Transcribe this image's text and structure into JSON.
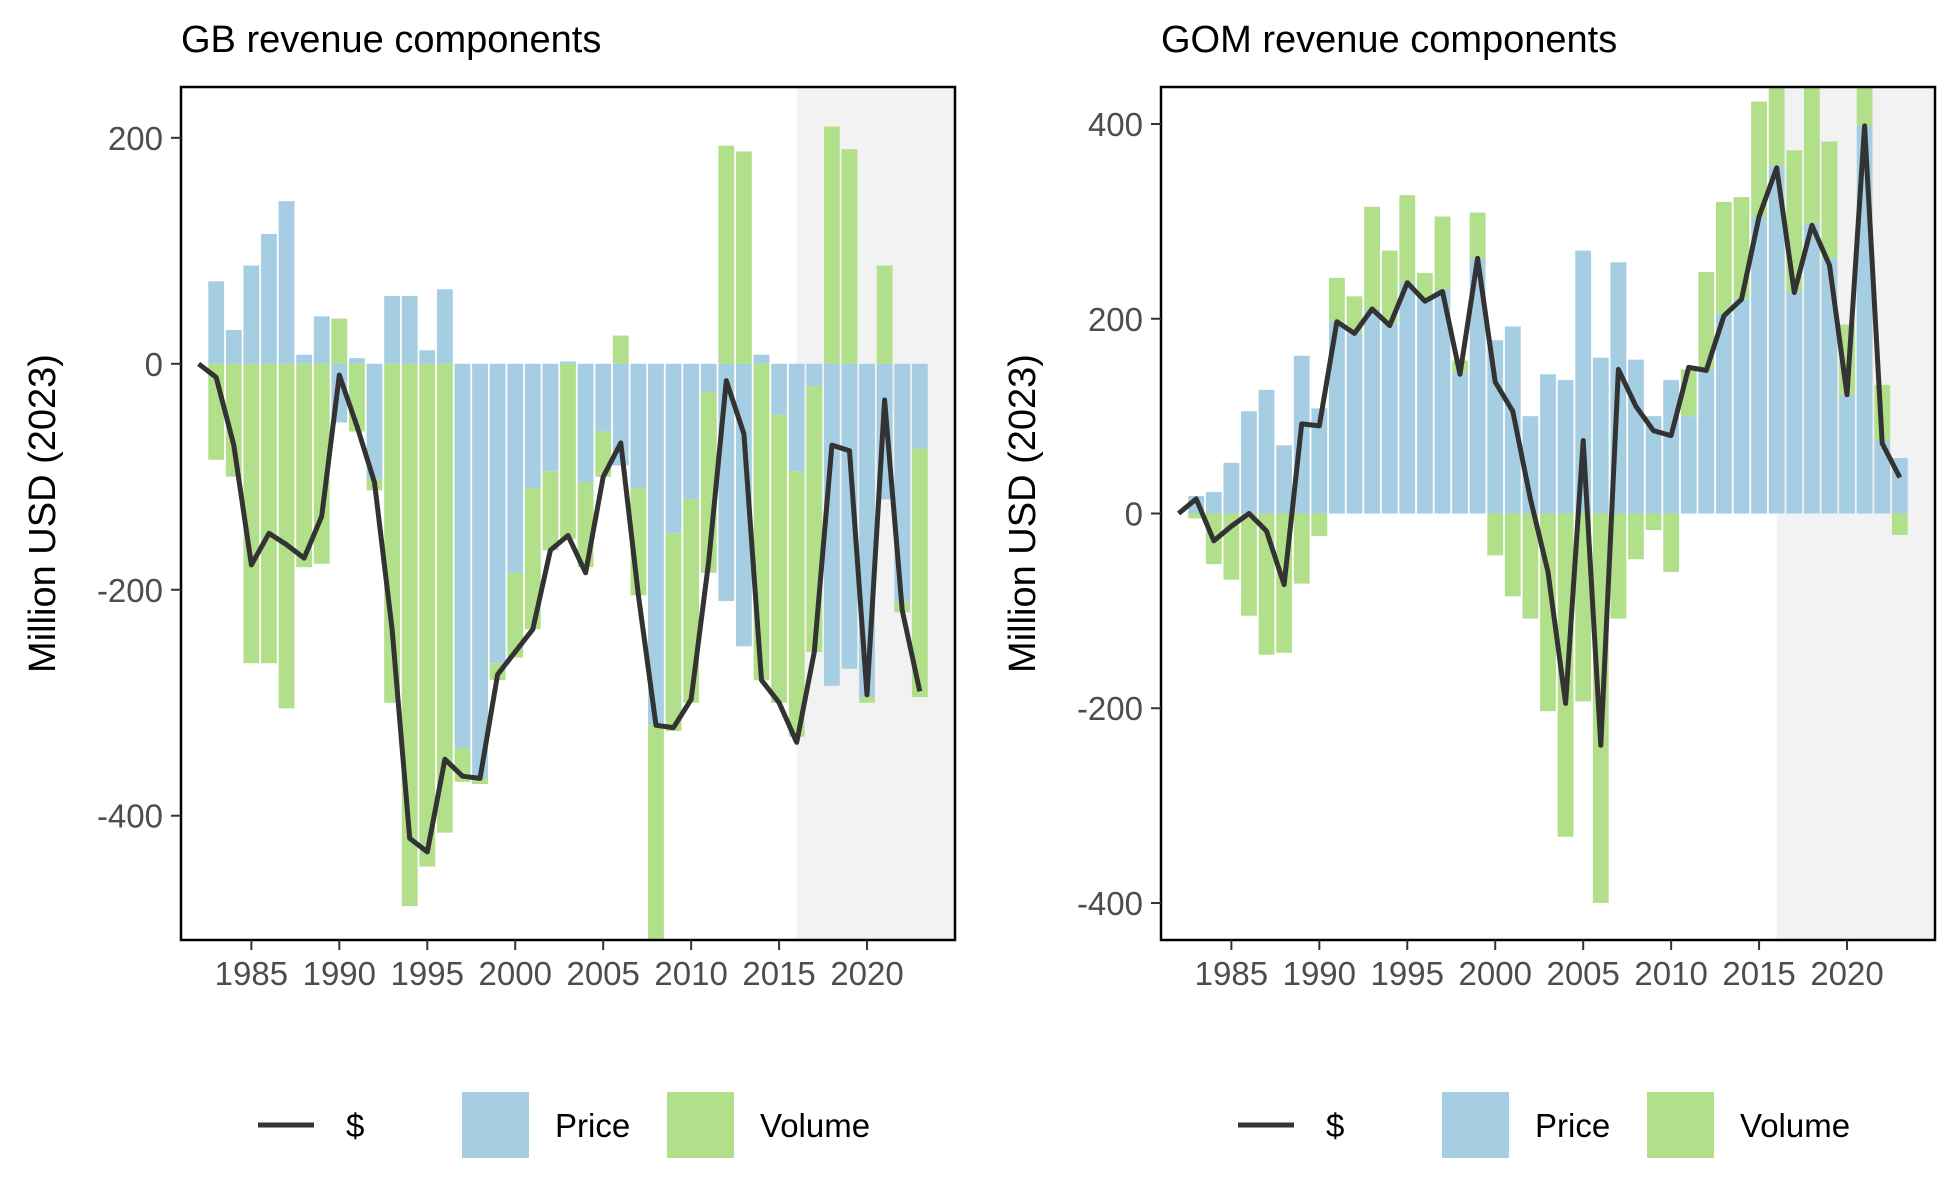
{
  "colors": {
    "price": "#a6cee3",
    "volume": "#b2df8a",
    "line": "#333333",
    "shade": "#f2f2f2"
  },
  "legend": {
    "line_label": "$",
    "price_label": "Price",
    "volume_label": "Volume"
  },
  "chart_data": [
    {
      "type": "bar",
      "title": "GB revenue components",
      "ylabel": "Million USD (2023)",
      "xlim": [
        1981,
        2025
      ],
      "ylim": [
        -510,
        245
      ],
      "xticks": [
        1985,
        1990,
        1995,
        2000,
        2005,
        2010,
        2015,
        2020
      ],
      "yticks": [
        -400,
        -200,
        0,
        200
      ],
      "shade_from": 2016,
      "x": [
        1983,
        1984,
        1985,
        1986,
        1987,
        1988,
        1989,
        1990,
        1991,
        1992,
        1993,
        1994,
        1995,
        1996,
        1997,
        1998,
        1999,
        2000,
        2001,
        2002,
        2003,
        2004,
        2005,
        2006,
        2007,
        2008,
        2009,
        2010,
        2011,
        2012,
        2013,
        2014,
        2015,
        2016,
        2017,
        2018,
        2019,
        2020,
        2021,
        2022,
        2023
      ],
      "series": [
        {
          "name": "Price",
          "values": [
            73,
            30,
            87,
            115,
            144,
            8,
            42,
            -52,
            5,
            -102,
            60,
            60,
            12,
            66,
            -340,
            -367,
            -265,
            -185,
            -110,
            -95,
            2,
            -105,
            -60,
            -90,
            -110,
            -320,
            -150,
            -120,
            -25,
            -210,
            -250,
            8,
            -45,
            -95,
            -20,
            -285,
            -270,
            -295,
            -120,
            -210,
            -75
          ]
        },
        {
          "name": "Volume",
          "values": [
            -85,
            -100,
            -265,
            -265,
            -305,
            -180,
            -177,
            40,
            -60,
            -10,
            -300,
            -480,
            -445,
            -415,
            -30,
            -5,
            -15,
            -75,
            -125,
            -70,
            -155,
            -75,
            -40,
            25,
            -95,
            -190,
            -175,
            -180,
            -160,
            193,
            188,
            -280,
            -255,
            -235,
            -235,
            210,
            190,
            -5,
            87,
            -10,
            -220
          ]
        },
        {
          "name": "$",
          "values": [
            -12,
            -72,
            -178,
            -150,
            -160,
            -172,
            -135,
            -10,
            -55,
            -105,
            -235,
            -420,
            -432,
            -350,
            -365,
            -367,
            -275,
            -255,
            -235,
            -165,
            -152,
            -185,
            -100,
            -70,
            -205,
            -320,
            -322,
            -297,
            -175,
            -15,
            -62,
            -280,
            -300,
            -335,
            -255,
            -72,
            -77,
            -293,
            -32,
            -218,
            -290
          ]
        }
      ],
      "line_start": [
        1982,
        0
      ]
    },
    {
      "type": "bar",
      "title": "GOM revenue components",
      "ylabel": "Million USD (2023)",
      "xlim": [
        1981,
        2025
      ],
      "ylim": [
        -438,
        438
      ],
      "xticks": [
        1985,
        1990,
        1995,
        2000,
        2005,
        2010,
        2015,
        2020
      ],
      "yticks": [
        -400,
        -200,
        0,
        200,
        400
      ],
      "shade_from": 2016,
      "x": [
        1983,
        1984,
        1985,
        1986,
        1987,
        1988,
        1989,
        1990,
        1991,
        1992,
        1993,
        1994,
        1995,
        1996,
        1997,
        1998,
        1999,
        2000,
        2001,
        2002,
        2003,
        2004,
        2005,
        2006,
        2007,
        2008,
        2009,
        2010,
        2011,
        2012,
        2013,
        2014,
        2015,
        2016,
        2017,
        2018,
        2019,
        2020,
        2021,
        2022,
        2023
      ],
      "series": [
        {
          "name": "Price",
          "values": [
            18,
            22,
            52,
            105,
            127,
            70,
            162,
            108,
            197,
            185,
            210,
            195,
            237,
            220,
            230,
            145,
            262,
            178,
            192,
            100,
            143,
            137,
            270,
            160,
            258,
            158,
            100,
            137,
            100,
            148,
            205,
            220,
            305,
            357,
            228,
            298,
            262,
            122,
            398,
            75,
            57
          ]
        },
        {
          "name": "Volume",
          "values": [
            -5,
            -52,
            -68,
            -105,
            -145,
            -143,
            -72,
            -23,
            45,
            38,
            105,
            75,
            90,
            27,
            75,
            12,
            47,
            -43,
            -85,
            -108,
            -203,
            -332,
            -193,
            -400,
            -108,
            -47,
            -17,
            -60,
            48,
            100,
            115,
            105,
            118,
            225,
            145,
            230,
            120,
            72,
            170,
            57,
            -22
          ]
        },
        {
          "name": "$",
          "values": [
            15,
            -28,
            -13,
            0,
            -18,
            -73,
            92,
            90,
            197,
            185,
            210,
            193,
            237,
            218,
            228,
            143,
            262,
            135,
            105,
            15,
            -60,
            -195,
            75,
            -238,
            148,
            110,
            85,
            80,
            150,
            147,
            203,
            220,
            305,
            355,
            227,
            296,
            255,
            122,
            398,
            72,
            37
          ]
        }
      ],
      "line_start": [
        1982,
        0
      ]
    }
  ]
}
